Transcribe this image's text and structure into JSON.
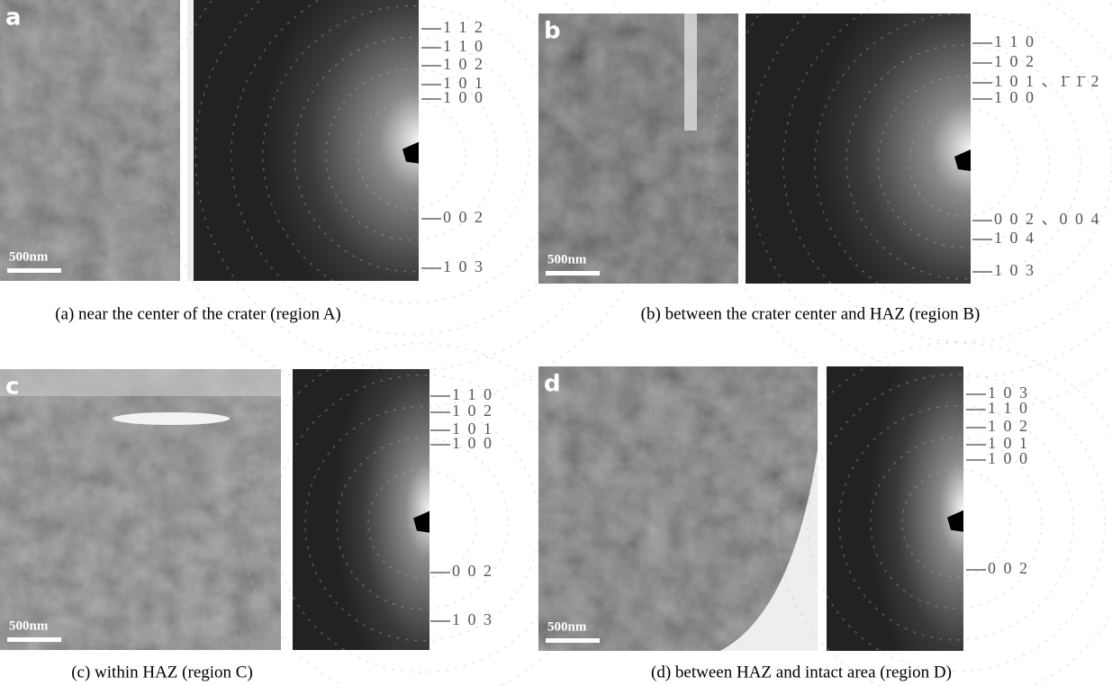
{
  "panels": [
    {
      "letter": "a",
      "scale_bar": "500nm",
      "indices": [
        "1 1 2",
        "1 1 0",
        "1 0 2",
        "1 0 1",
        "1 0 0",
        "0 0 2",
        "1 0 3"
      ],
      "caption": "(a) near the center of the crater (region A)"
    },
    {
      "letter": "b",
      "scale_bar": "500nm",
      "indices": [
        "1 1 0",
        "1 0 2",
        "1 0 1 、1̄ 1̄ 2",
        "1 0 0",
        "0 0 2 、0 0 4",
        "1 0 4",
        "1 0 3"
      ],
      "caption": "(b) between the crater center and HAZ (region B)"
    },
    {
      "letter": "c",
      "scale_bar": "500nm",
      "indices": [
        "1 1 0",
        "1 0 2",
        "1 0 1",
        "1 0 0",
        "0 0 2",
        "1 0 3"
      ],
      "caption": "(c) within HAZ (region C)"
    },
    {
      "letter": "d",
      "scale_bar": "500nm",
      "indices": [
        "1 0 3",
        "1 1 0",
        "1 0 2",
        "1 0 1",
        "1 0 0",
        "0 0 2"
      ],
      "caption": "(d) between HAZ and intact area (region D)"
    }
  ]
}
